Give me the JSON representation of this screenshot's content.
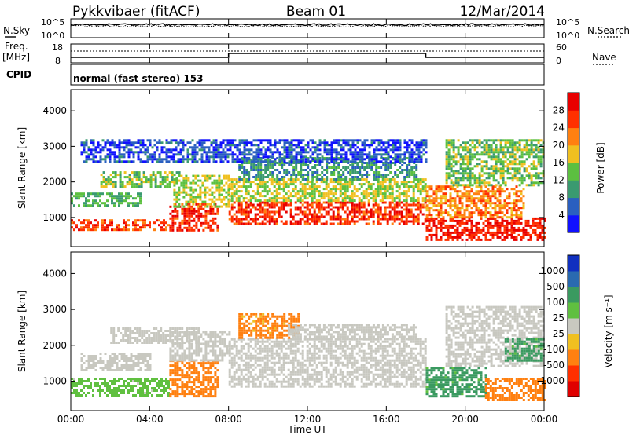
{
  "header": {
    "station": "Pykkvibaer (fitACF)",
    "beam": "Beam 01",
    "date": "12/Mar/2014"
  },
  "params": {
    "nsky_label": "N.Sky",
    "nsearch_label": "N.Search",
    "noise_ticks": [
      "10^5",
      "10^0"
    ],
    "freq_label": "Freq.",
    "freq_unit": "[MHz]",
    "freq_ticks": [
      "18",
      "8"
    ],
    "nave_label": "Nave",
    "nave_ticks": [
      "60",
      "0"
    ],
    "cpid_label": "CPID",
    "cpid_text": "normal (fast stereo) 153"
  },
  "chart_data": [
    {
      "type": "heatmap",
      "panel": "power",
      "xlabel": "Time UT",
      "ylabel": "Slant Range [km]",
      "x_ticks": [
        "00:00",
        "04:00",
        "08:00",
        "12:00",
        "16:00",
        "20:00",
        "00:00"
      ],
      "xlim_hours": [
        0,
        24
      ],
      "ylim_km": [
        180,
        4600
      ],
      "y_ticks": [
        1000,
        2000,
        3000,
        4000
      ],
      "colorbar_label": "Power [dB]",
      "colorbar_ticks": [
        "4",
        "8",
        "12",
        "16",
        "20",
        "24",
        "28"
      ],
      "colorbar_colors": [
        "#1010ff",
        "#2a5fc0",
        "#3a9a70",
        "#5cc040",
        "#f0c020",
        "#ff8010",
        "#ff3000",
        "#e80000"
      ],
      "bands": [
        {
          "t0": 0.0,
          "t1": 5.0,
          "r0": 620,
          "r1": 950,
          "level": 26
        },
        {
          "t0": 0.0,
          "t1": 3.5,
          "r0": 1350,
          "r1": 1700,
          "level": 12
        },
        {
          "t0": 1.5,
          "t1": 5.5,
          "r0": 1900,
          "r1": 2300,
          "level": 14
        },
        {
          "t0": 5.0,
          "t1": 7.5,
          "r0": 650,
          "r1": 1400,
          "level": 27
        },
        {
          "t0": 5.2,
          "t1": 8.0,
          "r0": 1300,
          "r1": 2200,
          "level": 16
        },
        {
          "t0": 8.0,
          "t1": 18.0,
          "r0": 850,
          "r1": 1450,
          "level": 27
        },
        {
          "t0": 8.0,
          "t1": 18.0,
          "r0": 1450,
          "r1": 2100,
          "level": 16
        },
        {
          "t0": 8.5,
          "t1": 17.5,
          "r0": 2100,
          "r1": 2700,
          "level": 10
        },
        {
          "t0": 18.0,
          "t1": 24.0,
          "r0": 350,
          "r1": 1000,
          "level": 28
        },
        {
          "t0": 18.0,
          "t1": 23.0,
          "r0": 1000,
          "r1": 1900,
          "level": 22
        },
        {
          "t0": 19.0,
          "t1": 24.0,
          "r0": 1900,
          "r1": 3200,
          "level": 14
        },
        {
          "t0": 0.5,
          "t1": 18.0,
          "r0": 2600,
          "r1": 3200,
          "level": 5
        }
      ]
    },
    {
      "type": "heatmap",
      "panel": "velocity",
      "xlabel": "Time UT",
      "ylabel": "Slant Range [km]",
      "x_ticks": [
        "00:00",
        "04:00",
        "08:00",
        "12:00",
        "16:00",
        "20:00",
        "00:00"
      ],
      "xlim_hours": [
        0,
        24
      ],
      "ylim_km": [
        180,
        4600
      ],
      "y_ticks": [
        1000,
        2000,
        3000,
        4000
      ],
      "colorbar_label": "Velocity [m s⁻¹]",
      "colorbar_ticks": [
        "1000",
        "500",
        "100",
        "25",
        "-25",
        "-100",
        "-500",
        "-1000"
      ],
      "colorbar_colors": [
        "#1030c0",
        "#2a6ab0",
        "#3a9a60",
        "#60c040",
        "#c8c8c0",
        "#f0c020",
        "#ff8010",
        "#ff3000",
        "#e00000"
      ],
      "bands": [
        {
          "t0": 0.0,
          "t1": 5.0,
          "r0": 600,
          "r1": 1100,
          "level": 40
        },
        {
          "t0": 0.5,
          "t1": 4.0,
          "r0": 1300,
          "r1": 1800,
          "level": 0
        },
        {
          "t0": 5.0,
          "t1": 7.5,
          "r0": 600,
          "r1": 1600,
          "level": -300
        },
        {
          "t0": 5.0,
          "t1": 8.0,
          "r0": 1600,
          "r1": 2400,
          "level": 0
        },
        {
          "t0": 2.0,
          "t1": 6.5,
          "r0": 2100,
          "r1": 2500,
          "level": 0
        },
        {
          "t0": 8.0,
          "t1": 18.0,
          "r0": 850,
          "r1": 2200,
          "level": 0
        },
        {
          "t0": 8.5,
          "t1": 11.5,
          "r0": 2200,
          "r1": 2900,
          "level": -150
        },
        {
          "t0": 11.0,
          "t1": 17.5,
          "r0": 2200,
          "r1": 2600,
          "level": 0
        },
        {
          "t0": 18.0,
          "t1": 21.0,
          "r0": 600,
          "r1": 1400,
          "level": 150
        },
        {
          "t0": 21.0,
          "t1": 24.0,
          "r0": 450,
          "r1": 1100,
          "level": -300
        },
        {
          "t0": 19.0,
          "t1": 24.0,
          "r0": 1400,
          "r1": 3100,
          "level": 0
        },
        {
          "t0": 22.0,
          "t1": 24.0,
          "r0": 1600,
          "r1": 2200,
          "level": 150
        }
      ]
    }
  ]
}
